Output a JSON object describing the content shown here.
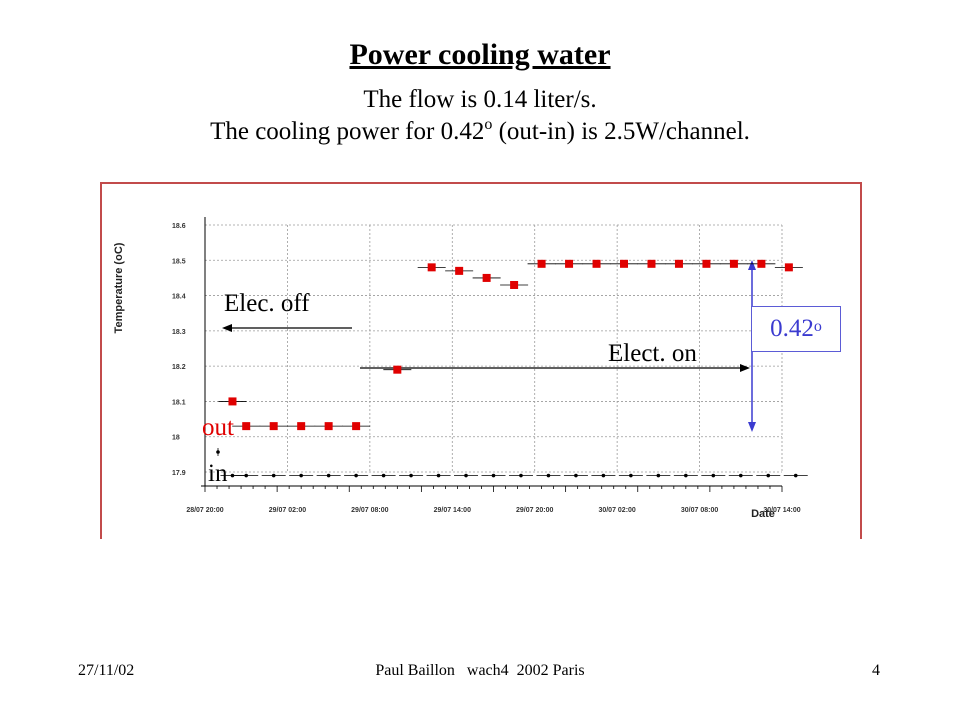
{
  "slide": {
    "title": "Power cooling water",
    "subtitle_1": "The flow is 0.14 liter/s.",
    "subtitle_2_pre": "The cooling power for 0.42",
    "subtitle_2_deg": "o",
    "subtitle_2_post": " (out-in) is 2.5W/channel."
  },
  "annotations": {
    "elec_off": "Elec. off",
    "elect_on": "Elect. on",
    "delta_value": "0.42",
    "delta_deg": "o",
    "out_label": "out",
    "in_label": "in"
  },
  "colors": {
    "out_series": "#e00000",
    "in_series": "#000000",
    "frame": "#c24b4b",
    "delta_box": "#3b3bd0"
  },
  "footer": {
    "date": "27/11/02",
    "author": "Paul Baillon   wach4  2002 Paris",
    "page": "4"
  },
  "chart_data": {
    "type": "scatter",
    "ylabel": "Temperature (oC)",
    "xlabel": "Date",
    "y_ticks": [
      "17.9",
      "18",
      "18.1",
      "18.2",
      "18.3",
      "18.4",
      "18.5",
      "18.6"
    ],
    "x_ticks": [
      "28/07 20:00",
      "29/07 02:00",
      "29/07 08:00",
      "29/07 14:00",
      "29/07 20:00",
      "30/07 02:00",
      "30/07 08:00",
      "30/07 14:00"
    ],
    "ylim": [
      17.9,
      18.6
    ],
    "xlim": [
      "28/07 20:00",
      "30/07 14:00"
    ],
    "grid": true,
    "series": [
      {
        "name": "out",
        "marker": "square",
        "x": [
          "28/07 22:00",
          "28/07 23:00",
          "29/07 01:00",
          "29/07 03:00",
          "29/07 05:00",
          "29/07 07:00",
          "29/07 10:00",
          "29/07 12:30",
          "29/07 14:30",
          "29/07 16:30",
          "29/07 18:30",
          "29/07 20:30",
          "29/07 22:30",
          "30/07 00:30",
          "30/07 02:30",
          "30/07 04:30",
          "30/07 06:30",
          "30/07 08:30",
          "30/07 10:30",
          "30/07 12:30",
          "30/07 14:30"
        ],
        "y": [
          18.1,
          18.03,
          18.03,
          18.03,
          18.03,
          18.03,
          18.19,
          18.48,
          18.47,
          18.45,
          18.43,
          18.49,
          18.49,
          18.49,
          18.49,
          18.49,
          18.49,
          18.49,
          18.49,
          18.49,
          18.48
        ]
      },
      {
        "name": "in",
        "marker": "dot",
        "x": [
          "28/07 22:00",
          "28/07 23:00",
          "29/07 01:00",
          "29/07 03:00",
          "29/07 05:00",
          "29/07 07:00",
          "29/07 09:00",
          "29/07 11:00",
          "29/07 13:00",
          "29/07 15:00",
          "29/07 17:00",
          "29/07 19:00",
          "29/07 21:00",
          "29/07 23:00",
          "30/07 01:00",
          "30/07 03:00",
          "30/07 05:00",
          "30/07 07:00",
          "30/07 09:00",
          "30/07 11:00",
          "30/07 13:00",
          "30/07 15:00"
        ],
        "y": [
          17.89,
          17.89,
          17.89,
          17.89,
          17.89,
          17.89,
          17.89,
          17.89,
          17.89,
          17.89,
          17.89,
          17.89,
          17.89,
          17.89,
          17.89,
          17.89,
          17.89,
          17.89,
          17.89,
          17.89,
          17.89,
          17.89
        ]
      }
    ]
  }
}
